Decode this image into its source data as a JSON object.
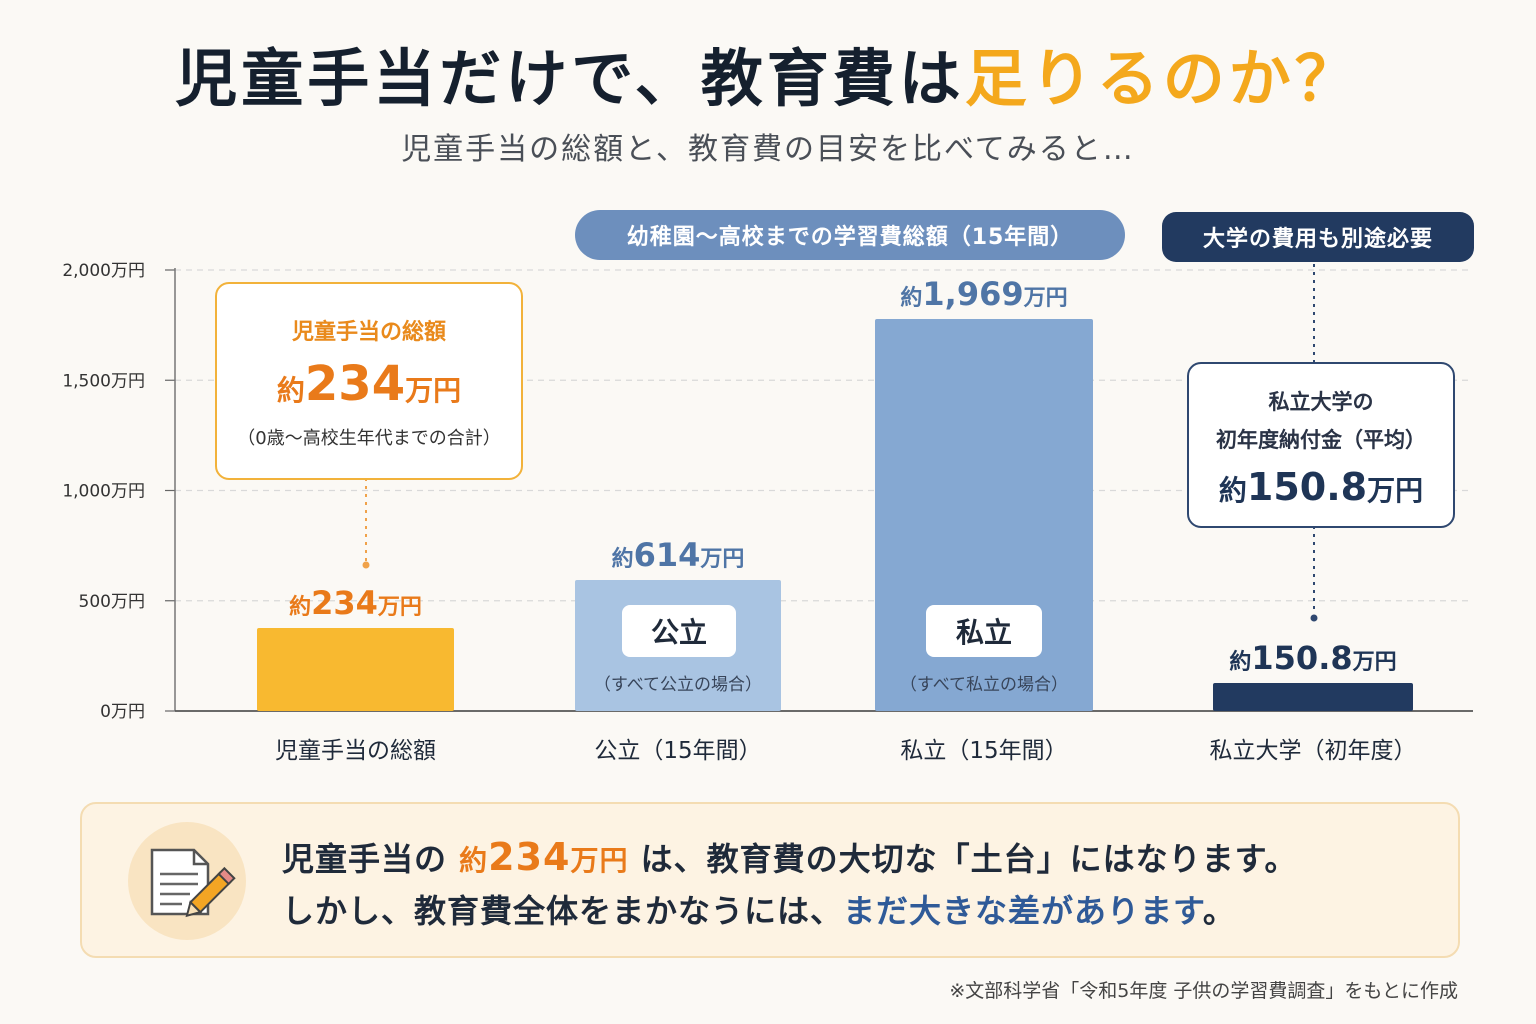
{
  "header": {
    "title_main": "児童手当だけで、教育費は",
    "title_accent": "足りるのか？",
    "subtitle": "児童手当の総額と、教育費の目安を比べてみると…"
  },
  "banners": {
    "kindergarten_to_highschool": "幼稚園～高校までの学習費総額（15年間）",
    "university_note": "大学の費用も別途必要"
  },
  "callouts": {
    "allowance": {
      "title": "児童手当の総額",
      "prefix": "約",
      "number": "234",
      "unit": "万円",
      "note": "（0歳～高校生年代までの合計）"
    },
    "university": {
      "line1": "私立大学の",
      "line2": "初年度納付金（平均）",
      "prefix": "約",
      "number": "150.8",
      "unit": "万円"
    }
  },
  "bar_inner_labels": {
    "public": {
      "label": "公立",
      "note": "（すべて公立の場合）"
    },
    "private": {
      "label": "私立",
      "note": "（すべて私立の場合）"
    }
  },
  "summary": {
    "l1_a": "児童手当の ",
    "l1_hl_prefix": "約",
    "l1_hl_number": "234",
    "l1_hl_unit": "万円",
    "l1_b": " は、教育費の大切な「土台」にはなります。",
    "l2_a": "しかし、教育費全体をまかなうには、",
    "l2_hl": "まだ大きな差があります",
    "l2_b": "。",
    "icon": "document-pencil-icon"
  },
  "source": "※文部科学省「令和5年度 子供の学習費調査」をもとに作成",
  "colors": {
    "allowance": "#f8b930",
    "public": "#a9c4e2",
    "private": "#85a8d2",
    "university": "#223a60",
    "orange_text": "#e97a1a",
    "blue_text": "#4f75a6",
    "navy_text": "#1f3556"
  },
  "chart_data": {
    "type": "bar",
    "categories": [
      "児童手当の総額",
      "公立（15年間）",
      "私立（15年間）",
      "私立大学（初年度）"
    ],
    "values": [
      234,
      614,
      1969,
      150.8
    ],
    "value_labels": [
      "約234万円",
      "約614万円",
      "約1,969万円",
      "約150.8万円"
    ],
    "ylim": [
      0,
      2000
    ],
    "yticks": [
      0,
      500,
      1000,
      1500,
      2000
    ],
    "ytick_labels": [
      "0万円",
      "500万円",
      "1,000万円",
      "1,500万円",
      "2,000万円"
    ],
    "grid": true,
    "xlabel": "",
    "ylabel": ""
  }
}
